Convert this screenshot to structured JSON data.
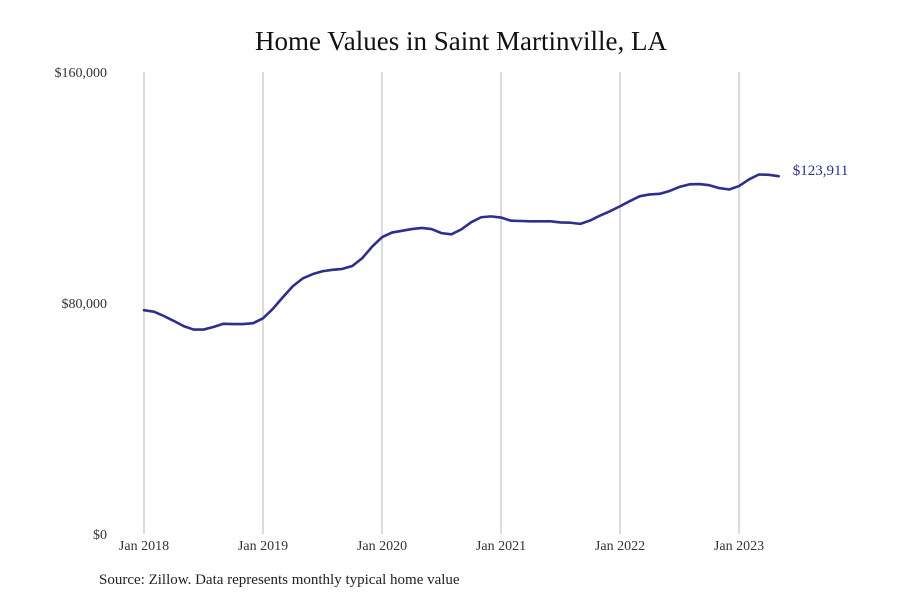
{
  "colors": {
    "line": "#2e2f8a",
    "grid": "#b8b8b8",
    "background": "#ffffff"
  },
  "chart_data": {
    "type": "line",
    "title": "Home Values in Saint Martinville, LA",
    "xlabel": "",
    "ylabel": "",
    "ylim": [
      0,
      160000
    ],
    "y_ticks": [
      {
        "value": 0,
        "label": "$0"
      },
      {
        "value": 80000,
        "label": "$80,000"
      },
      {
        "value": 160000,
        "label": "$160,000"
      }
    ],
    "x_ticks": [
      {
        "value": "2018-01",
        "label": "Jan 2018"
      },
      {
        "value": "2019-01",
        "label": "Jan 2019"
      },
      {
        "value": "2020-01",
        "label": "Jan 2020"
      },
      {
        "value": "2021-01",
        "label": "Jan 2021"
      },
      {
        "value": "2022-01",
        "label": "Jan 2022"
      },
      {
        "value": "2023-01",
        "label": "Jan 2023"
      }
    ],
    "grid": "vertical at year ticks",
    "legend": "none",
    "series": [
      {
        "x": [
          "2018-01",
          "2018-02",
          "2018-03",
          "2018-04",
          "2018-05",
          "2018-06",
          "2018-07",
          "2018-08",
          "2018-09",
          "2018-10",
          "2018-11",
          "2018-12",
          "2019-01",
          "2019-02",
          "2019-03",
          "2019-04",
          "2019-05",
          "2019-06",
          "2019-07",
          "2019-08",
          "2019-09",
          "2019-10",
          "2019-11",
          "2019-12",
          "2020-01",
          "2020-02",
          "2020-03",
          "2020-04",
          "2020-05",
          "2020-06",
          "2020-07",
          "2020-08",
          "2020-09",
          "2020-10",
          "2020-11",
          "2020-12",
          "2021-01",
          "2021-02",
          "2021-03",
          "2021-04",
          "2021-05",
          "2021-06",
          "2021-07",
          "2021-08",
          "2021-09",
          "2021-10",
          "2021-11",
          "2021-12",
          "2022-01",
          "2022-02",
          "2022-03",
          "2022-04",
          "2022-05",
          "2022-06",
          "2022-07",
          "2022-08",
          "2022-09",
          "2022-10",
          "2022-11",
          "2022-12",
          "2023-01",
          "2023-02",
          "2023-03",
          "2023-04",
          "2023-05"
        ],
        "values": [
          77500,
          77000,
          75500,
          73800,
          72000,
          70800,
          70800,
          71700,
          72800,
          72700,
          72700,
          73000,
          74700,
          78000,
          82000,
          85800,
          88500,
          90000,
          91000,
          91500,
          91800,
          92800,
          95500,
          99500,
          102800,
          104400,
          105000,
          105600,
          106000,
          105600,
          104200,
          103800,
          105500,
          108000,
          109700,
          110000,
          109600,
          108500,
          108400,
          108300,
          108300,
          108300,
          107900,
          107800,
          107400,
          108600,
          110300,
          111800,
          113500,
          115300,
          117000,
          117600,
          117800,
          118800,
          120200,
          121100,
          121200,
          120800,
          119800,
          119300,
          120500,
          122800,
          124500,
          124400,
          123911
        ]
      }
    ],
    "end_label": "$123,911"
  },
  "footer": {
    "source": "Source: Zillow. Data represents monthly typical home value"
  }
}
